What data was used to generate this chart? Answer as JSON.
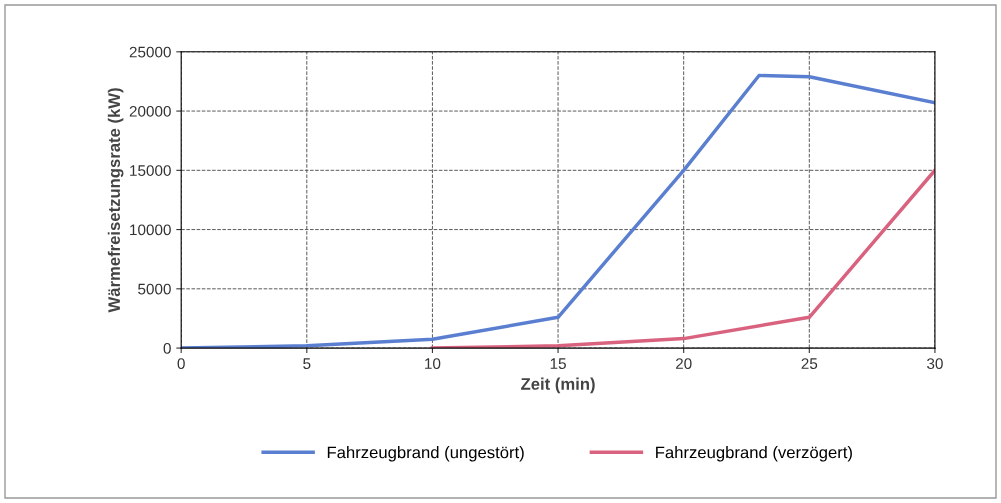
{
  "chart_data": {
    "type": "line",
    "xlabel": "Zeit (min)",
    "ylabel": "Wärmefreisetzungsrate (kW)",
    "xlim": [
      0,
      30
    ],
    "xticks": [
      0,
      5,
      10,
      15,
      20,
      25,
      30
    ],
    "ylim": [
      0,
      25000
    ],
    "yticks": [
      0,
      5000,
      10000,
      15000,
      20000,
      25000
    ],
    "grid": true,
    "legend": "bottom",
    "marker": "none",
    "line_style": "solid",
    "series": [
      {
        "name": "Fahrzeugbrand (ungestört)",
        "color": "#5b7fd0",
        "x": [
          0,
          5,
          10,
          15,
          20,
          23,
          25,
          30
        ],
        "values": [
          0,
          200,
          750,
          2600,
          15000,
          23000,
          22900,
          20700
        ]
      },
      {
        "name": "Fahrzeugbrand (verzögert)",
        "color": "#d9637e",
        "x": [
          10,
          15,
          20,
          25,
          30
        ],
        "values": [
          0,
          200,
          800,
          2600,
          15000
        ]
      }
    ]
  }
}
